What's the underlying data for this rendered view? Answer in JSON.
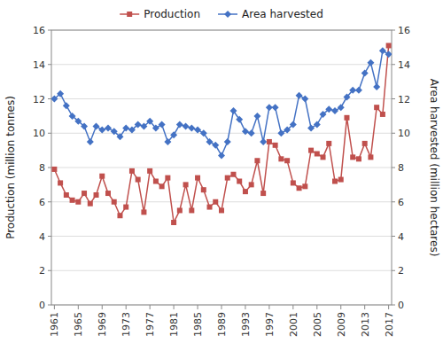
{
  "chart_data": {
    "type": "line",
    "x": [
      1961,
      1962,
      1963,
      1964,
      1965,
      1966,
      1967,
      1968,
      1969,
      1970,
      1971,
      1972,
      1973,
      1974,
      1975,
      1976,
      1977,
      1978,
      1979,
      1980,
      1981,
      1982,
      1983,
      1984,
      1985,
      1986,
      1987,
      1988,
      1989,
      1990,
      1991,
      1992,
      1993,
      1994,
      1995,
      1996,
      1997,
      1998,
      1999,
      2000,
      2001,
      2002,
      2003,
      2004,
      2005,
      2006,
      2007,
      2008,
      2009,
      2010,
      2011,
      2012,
      2013,
      2014,
      2015,
      2016,
      2017
    ],
    "xlim": [
      1960.5,
      2017.5
    ],
    "xticks": [
      1961,
      1965,
      1969,
      1973,
      1977,
      1981,
      1985,
      1989,
      1993,
      1997,
      2001,
      2005,
      2009,
      2013,
      2017
    ],
    "ylim": [
      0,
      16
    ],
    "yticks": [
      0,
      2,
      4,
      6,
      8,
      10,
      12,
      14,
      16
    ],
    "y2lim": [
      0,
      16
    ],
    "y2ticks": [
      0,
      2,
      4,
      6,
      8,
      10,
      12,
      14,
      16
    ],
    "ylabel": "Production (million tonnes)",
    "y2label": "Area harvested (million hectares)",
    "grid": true,
    "legend": "top",
    "series": [
      {
        "name": "Production",
        "color": "#c0504d",
        "marker": "square",
        "values": [
          7.9,
          7.1,
          6.4,
          6.1,
          6.0,
          6.5,
          5.9,
          6.4,
          7.5,
          6.5,
          6.0,
          5.2,
          5.7,
          7.8,
          7.3,
          5.4,
          7.8,
          7.2,
          6.9,
          7.4,
          4.8,
          5.5,
          7.0,
          5.5,
          7.4,
          6.7,
          5.7,
          6.0,
          5.5,
          7.4,
          7.6,
          7.2,
          6.6,
          7.0,
          8.4,
          6.5,
          9.5,
          9.3,
          8.5,
          8.4,
          7.1,
          6.8,
          6.9,
          9.0,
          8.8,
          8.6,
          9.4,
          7.2,
          7.3,
          10.9,
          8.6,
          8.5,
          9.4,
          8.6,
          11.5,
          11.1,
          15.1
        ]
      },
      {
        "name": "Area harvested",
        "color": "#4472c4",
        "marker": "diamond",
        "axis": "y2",
        "values": [
          12.0,
          12.3,
          11.6,
          11.0,
          10.7,
          10.4,
          9.5,
          10.4,
          10.2,
          10.3,
          10.1,
          9.8,
          10.3,
          10.2,
          10.5,
          10.4,
          10.7,
          10.3,
          10.5,
          9.5,
          9.9,
          10.5,
          10.4,
          10.3,
          10.2,
          10.0,
          9.5,
          9.3,
          8.7,
          9.5,
          11.3,
          10.8,
          10.1,
          10.0,
          11.0,
          9.5,
          11.5,
          11.5,
          10.0,
          10.2,
          10.5,
          12.2,
          12.0,
          10.3,
          10.5,
          11.1,
          11.4,
          11.3,
          11.5,
          12.1,
          12.5,
          12.5,
          13.5,
          14.1,
          12.7,
          14.8,
          14.6
        ]
      }
    ]
  }
}
